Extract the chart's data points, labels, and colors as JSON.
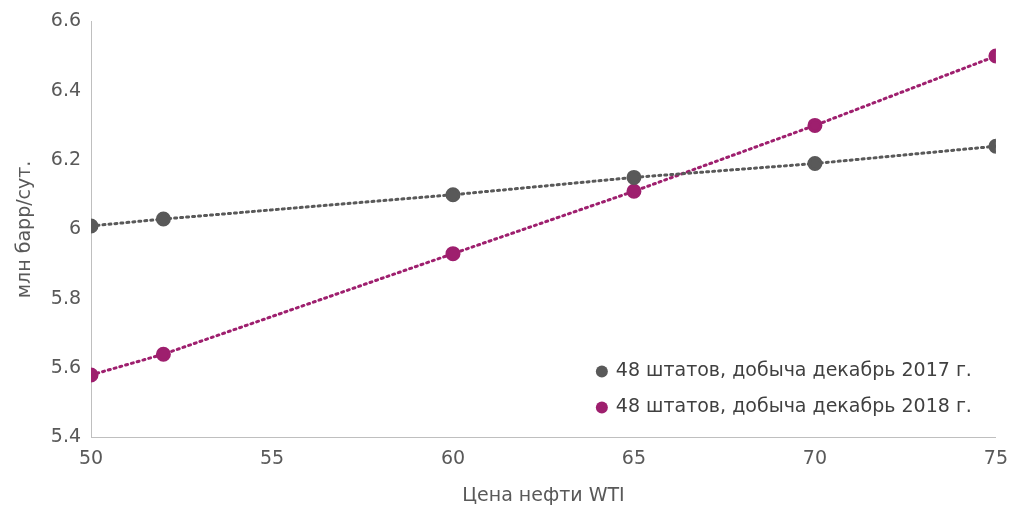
{
  "chart_data": {
    "type": "line",
    "xlabel": "Цена нефти WTI",
    "ylabel": "млн барр/сут.",
    "x": [
      50,
      52,
      60,
      65,
      70,
      75
    ],
    "series": [
      {
        "name": "48 штатов, добыча декабрь 2017 г.",
        "color": "#595959",
        "values": [
          6.01,
          6.03,
          6.1,
          6.15,
          6.19,
          6.24
        ]
      },
      {
        "name": "48 штатов, добыча декабрь 2018 г.",
        "color": "#9e1f6e",
        "values": [
          5.58,
          5.64,
          5.93,
          6.11,
          6.3,
          6.5
        ]
      }
    ],
    "xlim": [
      50,
      75
    ],
    "xticks": [
      50,
      55,
      60,
      65,
      70,
      75
    ],
    "ylim": [
      5.4,
      6.6
    ],
    "yticks": [
      5.4,
      5.6,
      5.8,
      6,
      6.2,
      6.4,
      6.6
    ],
    "grid": false,
    "legend": "bottom right",
    "marker": "circle",
    "line_style": "dotted"
  }
}
